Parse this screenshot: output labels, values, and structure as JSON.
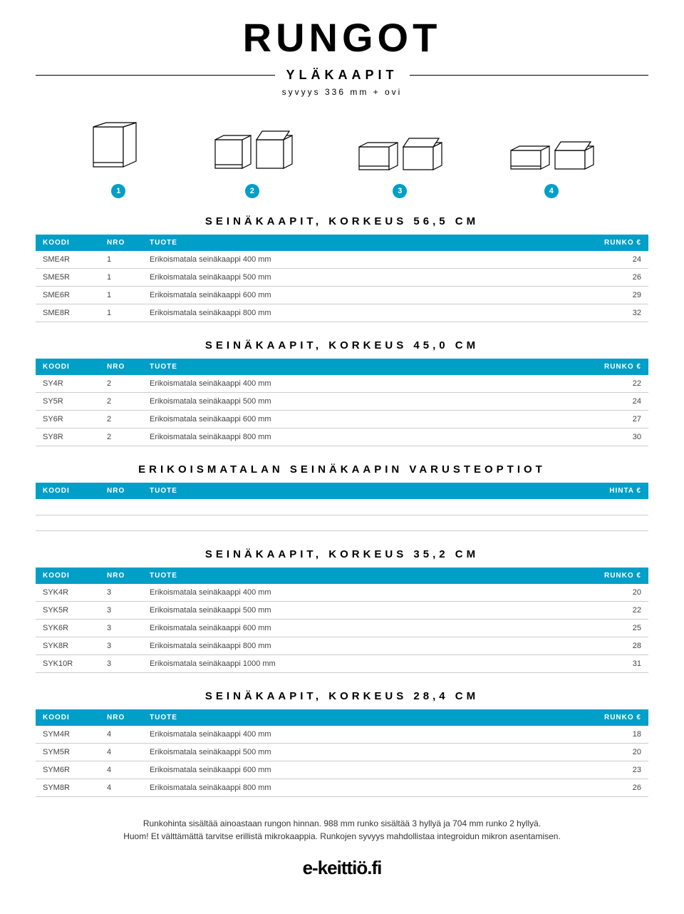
{
  "colors": {
    "header_bg": "#009fc7",
    "header_text": "#ffffff",
    "row_border": "#cccccc",
    "body_text": "#444444",
    "page_bg": "#ffffff"
  },
  "title": "RUNGOT",
  "subtitle": "YLÄKAAPIT",
  "subline": "syvyys 336 mm + ovi",
  "diagram_numbers": [
    "1",
    "2",
    "3",
    "4"
  ],
  "columns": {
    "koodi": "KOODI",
    "nro": "NRO",
    "tuote": "TUOTE",
    "runko": "RUNKO €",
    "hinta": "HINTA €"
  },
  "sections": [
    {
      "heading": "SEINÄKAAPIT, KORKEUS 56,5 CM",
      "price_col": "runko",
      "rows": [
        {
          "koodi": "SME4R",
          "nro": "1",
          "tuote": "Erikoismatala seinäkaappi 400 mm",
          "val": "24"
        },
        {
          "koodi": "SME5R",
          "nro": "1",
          "tuote": "Erikoismatala seinäkaappi 500 mm",
          "val": "26"
        },
        {
          "koodi": "SME6R",
          "nro": "1",
          "tuote": "Erikoismatala seinäkaappi 600 mm",
          "val": "29"
        },
        {
          "koodi": "SME8R",
          "nro": "1",
          "tuote": "Erikoismatala seinäkaappi 800 mm",
          "val": "32"
        }
      ]
    },
    {
      "heading": "SEINÄKAAPIT, KORKEUS 45,0 CM",
      "price_col": "runko",
      "rows": [
        {
          "koodi": "SY4R",
          "nro": "2",
          "tuote": "Erikoismatala seinäkaappi 400 mm",
          "val": "22"
        },
        {
          "koodi": "SY5R",
          "nro": "2",
          "tuote": "Erikoismatala seinäkaappi 500 mm",
          "val": "24"
        },
        {
          "koodi": "SY6R",
          "nro": "2",
          "tuote": "Erikoismatala seinäkaappi 600 mm",
          "val": "27"
        },
        {
          "koodi": "SY8R",
          "nro": "2",
          "tuote": "Erikoismatala seinäkaappi 800 mm",
          "val": "30"
        }
      ]
    },
    {
      "heading": "ERIKOISMATALAN SEINÄKAAPIN VARUSTEOPTIOT",
      "price_col": "hinta",
      "rows": [
        {
          "koodi": "",
          "nro": "",
          "tuote": "",
          "val": ""
        },
        {
          "koodi": "",
          "nro": "",
          "tuote": "",
          "val": ""
        }
      ]
    },
    {
      "heading": "SEINÄKAAPIT, KORKEUS 35,2 CM",
      "price_col": "runko",
      "rows": [
        {
          "koodi": "SYK4R",
          "nro": "3",
          "tuote": "Erikoismatala seinäkaappi 400 mm",
          "val": "20"
        },
        {
          "koodi": "SYK5R",
          "nro": "3",
          "tuote": "Erikoismatala seinäkaappi 500 mm",
          "val": "22"
        },
        {
          "koodi": "SYK6R",
          "nro": "3",
          "tuote": "Erikoismatala seinäkaappi 600 mm",
          "val": "25"
        },
        {
          "koodi": "SYK8R",
          "nro": "3",
          "tuote": "Erikoismatala seinäkaappi 800 mm",
          "val": "28"
        },
        {
          "koodi": "SYK10R",
          "nro": "3",
          "tuote": "Erikoismatala seinäkaappi 1000 mm",
          "val": "31"
        }
      ]
    },
    {
      "heading": "SEINÄKAAPIT, KORKEUS 28,4 CM",
      "price_col": "runko",
      "rows": [
        {
          "koodi": "SYM4R",
          "nro": "4",
          "tuote": "Erikoismatala seinäkaappi 400 mm",
          "val": "18"
        },
        {
          "koodi": "SYM5R",
          "nro": "4",
          "tuote": "Erikoismatala seinäkaappi 500 mm",
          "val": "20"
        },
        {
          "koodi": "SYM6R",
          "nro": "4",
          "tuote": "Erikoismatala seinäkaappi 600 mm",
          "val": "23"
        },
        {
          "koodi": "SYM8R",
          "nro": "4",
          "tuote": "Erikoismatala seinäkaappi 800 mm",
          "val": "26"
        }
      ]
    }
  ],
  "footnote_line1": "Runkohinta sisältää ainoastaan rungon hinnan. 988 mm runko sisältää 3 hyllyä ja 704 mm runko 2 hyllyä.",
  "footnote_line2": "Huom! Et välttämättä tarvitse erillistä mikrokaappia. Runkojen syvyys mahdollistaa integroidun mikron asentamisen.",
  "logo_text": "e-keittiö.fi"
}
